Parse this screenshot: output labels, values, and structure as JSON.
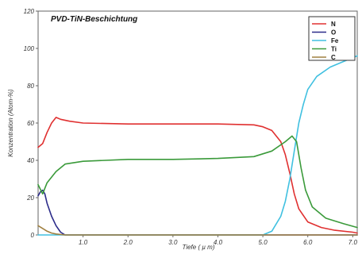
{
  "chart_data": {
    "type": "line",
    "title": "PVD-TiN-Beschichtung",
    "xlabel": "Tiefe ( µ m)",
    "ylabel": "Konzentration (Atom-%)",
    "xlim": [
      0,
      7.1
    ],
    "ylim": [
      0,
      120
    ],
    "xticks": [
      "1.0",
      "2.0",
      "3.0",
      "4.0",
      "5.0",
      "6.0",
      "7.0"
    ],
    "yticks": [
      "0",
      "20",
      "40",
      "60",
      "80",
      "100",
      "120"
    ],
    "legend_position": "top-right",
    "grid": false,
    "series": [
      {
        "name": "N",
        "color": "#e03030",
        "x": [
          0.0,
          0.1,
          0.2,
          0.3,
          0.4,
          0.5,
          0.7,
          1.0,
          2.0,
          3.0,
          4.0,
          4.8,
          5.0,
          5.2,
          5.4,
          5.5,
          5.6,
          5.7,
          5.8,
          6.0,
          6.3,
          6.6,
          7.0,
          7.1
        ],
        "values": [
          47,
          49,
          55,
          60,
          63,
          62,
          61,
          60,
          59.5,
          59.5,
          59.5,
          59,
          58,
          56,
          50,
          43,
          33,
          22,
          14,
          7,
          4,
          2.5,
          1.5,
          1
        ]
      },
      {
        "name": "O",
        "color": "#2c2c8a",
        "x": [
          0.0,
          0.05,
          0.1,
          0.15,
          0.2,
          0.3,
          0.4,
          0.5,
          0.6,
          7.1
        ],
        "values": [
          21,
          23,
          24,
          22,
          17,
          10,
          5,
          1.5,
          0,
          0
        ]
      },
      {
        "name": "Fe",
        "color": "#40c0e0",
        "x": [
          0.0,
          5.0,
          5.2,
          5.4,
          5.5,
          5.6,
          5.7,
          5.8,
          5.9,
          6.0,
          6.2,
          6.5,
          6.8,
          7.1
        ],
        "values": [
          0,
          0,
          2,
          10,
          18,
          30,
          45,
          60,
          70,
          78,
          85,
          90,
          93,
          96
        ]
      },
      {
        "name": "Ti",
        "color": "#3a9a3a",
        "x": [
          0.0,
          0.1,
          0.2,
          0.4,
          0.6,
          1.0,
          2.0,
          3.0,
          4.0,
          4.8,
          5.2,
          5.5,
          5.65,
          5.75,
          5.85,
          5.95,
          6.1,
          6.4,
          6.8,
          7.1
        ],
        "values": [
          27,
          22,
          28,
          34,
          38,
          39.5,
          40.5,
          40.5,
          41,
          42,
          45,
          50,
          53,
          50,
          36,
          24,
          15,
          9,
          6,
          4
        ]
      },
      {
        "name": "C",
        "color": "#a08040",
        "x": [
          0.0,
          0.1,
          0.2,
          0.3,
          0.4,
          0.6,
          7.1
        ],
        "values": [
          5,
          3.5,
          2,
          1,
          0.5,
          0,
          0
        ]
      }
    ]
  }
}
